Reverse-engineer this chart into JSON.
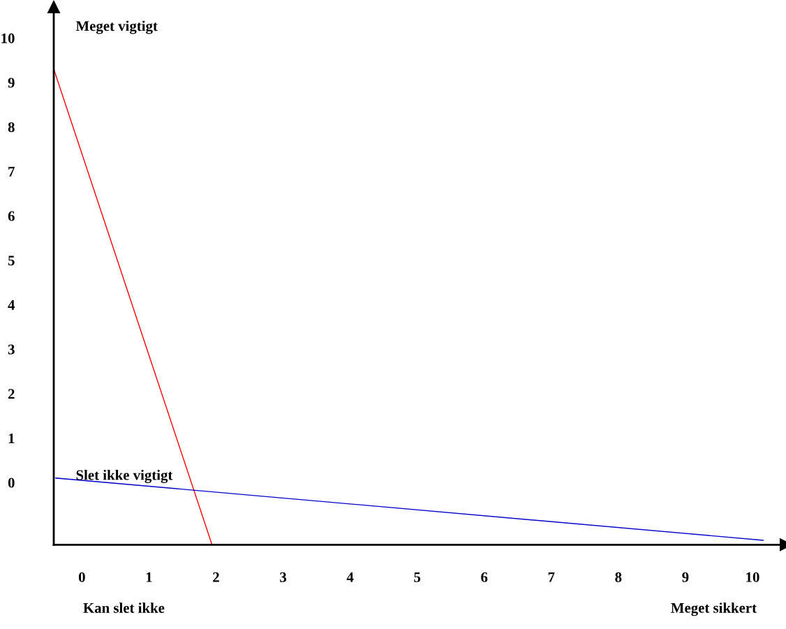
{
  "chart_data": {
    "type": "line",
    "series": [
      {
        "color": "#ff0000",
        "x": [
          -0.42,
          1.94
        ],
        "values": [
          9.3,
          -1.4
        ]
      },
      {
        "color": "#0000cc",
        "x": [
          -0.39,
          10.16
        ],
        "values": [
          0.1,
          -1.3
        ]
      }
    ],
    "xlim": [
      -0.42,
      10.5
    ],
    "ylim": [
      -1.4,
      10.7
    ],
    "xticks": [
      0,
      1,
      2,
      3,
      4,
      5,
      6,
      7,
      8,
      9,
      10
    ],
    "yticks": [
      0,
      1,
      2,
      3,
      4,
      5,
      6,
      7,
      8,
      9,
      10
    ],
    "annotations": [
      "Meget vigtigt",
      "Slet ikke vigtigt",
      "Kan slet ikke",
      "Meget sikkert"
    ],
    "grid": false,
    "legend": false,
    "marker": "none",
    "line_style": "solid"
  }
}
